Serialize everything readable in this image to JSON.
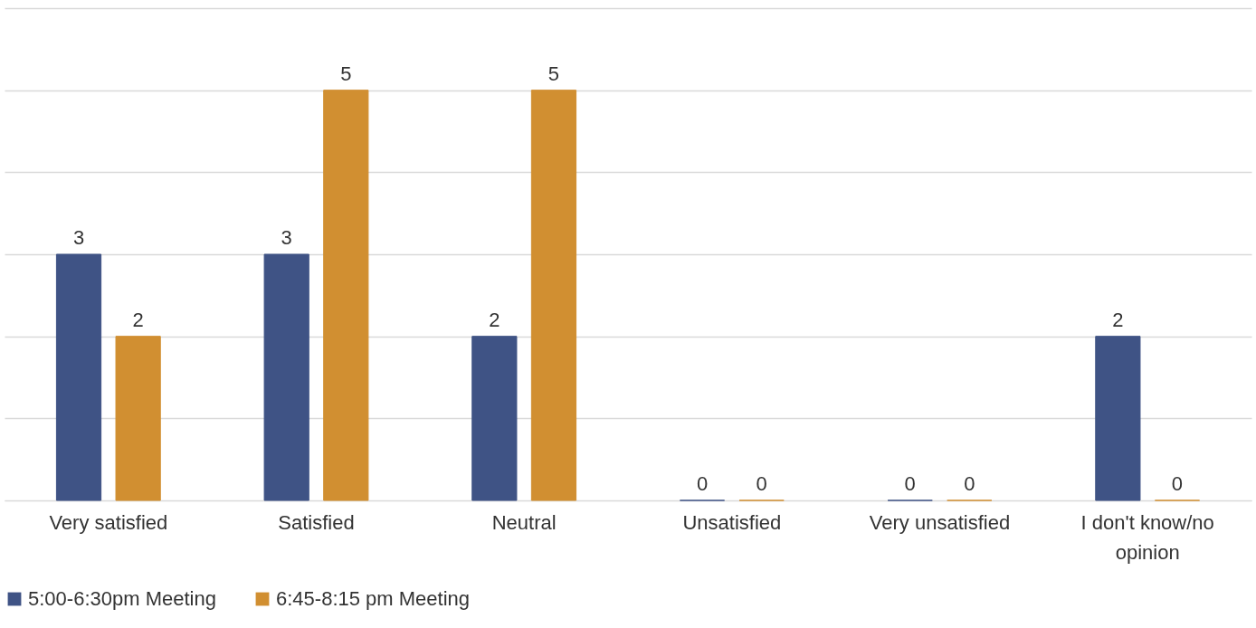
{
  "chart_data": {
    "type": "bar",
    "categories": [
      "Very satisfied",
      "Satisfied",
      "Neutral",
      "Unsatisfied",
      "Very unsatisfied",
      "I don't know/no opinion"
    ],
    "series": [
      {
        "name": "5:00-6:30pm Meeting",
        "color": "#3f5385",
        "values": [
          3,
          3,
          2,
          0,
          0,
          2
        ]
      },
      {
        "name": "6:45-8:15 pm Meeting",
        "color": "#d18f31",
        "values": [
          2,
          5,
          5,
          0,
          0,
          0
        ]
      }
    ],
    "ylim": [
      0,
      6
    ],
    "yticks": [
      {
        "value": 0,
        "label": null
      },
      {
        "value": 1,
        "label": null
      },
      {
        "value": 2,
        "label": null
      },
      {
        "value": 3,
        "label": null
      },
      {
        "value": 4,
        "label": null
      },
      {
        "value": 5,
        "label": null
      },
      {
        "value": 6,
        "label": null
      }
    ],
    "grid": "y",
    "tick_labels": "x",
    "data_labels": true,
    "legend": "bottom"
  }
}
